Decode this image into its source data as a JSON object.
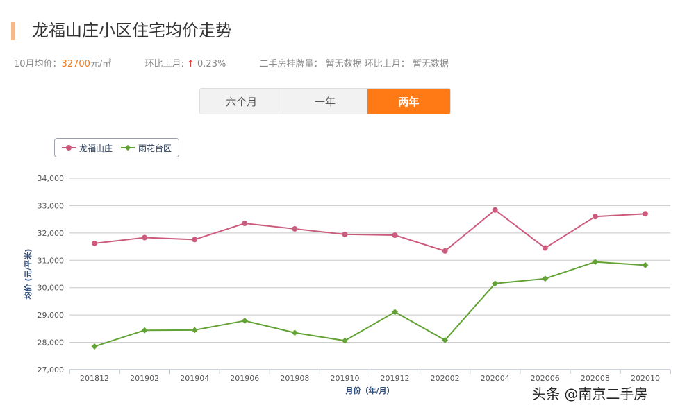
{
  "header": {
    "title": "龙福山庄小区住宅均价走势"
  },
  "stats": {
    "avg_label": "10月均价：",
    "avg_value": "32700",
    "avg_unit": "元/㎡",
    "mom_label": "环比上月:",
    "mom_arrow": "↑",
    "mom_value": "0.23%",
    "listing_label": "二手房挂牌量：",
    "listing_value": "暂无数据",
    "listing_mom_label": "环比上月：",
    "listing_mom_value": "暂无数据"
  },
  "tabs": [
    {
      "label": "六个月",
      "active": false
    },
    {
      "label": "一年",
      "active": false
    },
    {
      "label": "两年",
      "active": true
    }
  ],
  "chart_data": {
    "type": "line",
    "x": [
      "201812",
      "201902",
      "201904",
      "201906",
      "201908",
      "201910",
      "201912",
      "202002",
      "202004",
      "202006",
      "202008",
      "202010"
    ],
    "series": [
      {
        "name": "龙福山庄",
        "color": "#cc5a7c",
        "marker": "circle",
        "values": [
          31620,
          31830,
          31760,
          32350,
          32150,
          31950,
          31920,
          31340,
          32840,
          31450,
          32600,
          32700
        ]
      },
      {
        "name": "雨花台区",
        "color": "#62a234",
        "marker": "diamond",
        "values": [
          27850,
          28440,
          28450,
          28790,
          28350,
          28060,
          29110,
          28080,
          30150,
          30330,
          30940,
          30820
        ]
      }
    ],
    "ylim": [
      27000,
      34000
    ],
    "yticks": [
      "27,000",
      "28,000",
      "29,000",
      "30,000",
      "31,000",
      "32,000",
      "33,000",
      "34,000"
    ],
    "ylabel": "均价 (元/平米)",
    "xlabel": "月份（年/月）",
    "legend_position": "top-left",
    "grid": true
  },
  "watermark": "头条 @南京二手房"
}
